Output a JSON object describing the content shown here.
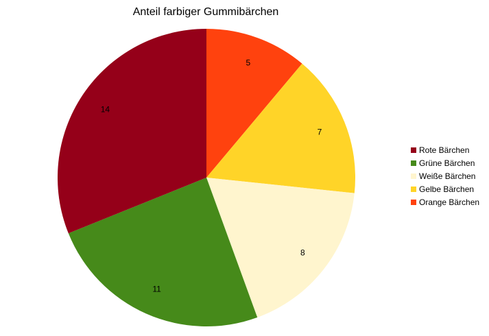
{
  "chart_data": {
    "type": "pie",
    "title": "Anteil farbiger Gummibärchen",
    "categories": [
      "Rote Bärchen",
      "Grüne Bärchen",
      "Weiße Bärchen",
      "Gelbe Bärchen",
      "Orange Bärchen"
    ],
    "values": [
      14,
      11,
      8,
      7,
      5
    ],
    "colors": [
      "#950019",
      "#468a1a",
      "#fff5ce",
      "#ffd428",
      "#ff420e"
    ],
    "legend_position": "right",
    "slice_order_clockwise_from_top": [
      "Orange Bärchen",
      "Gelbe Bärchen",
      "Weiße Bärchen",
      "Grüne Bärchen",
      "Rote Bärchen"
    ]
  }
}
